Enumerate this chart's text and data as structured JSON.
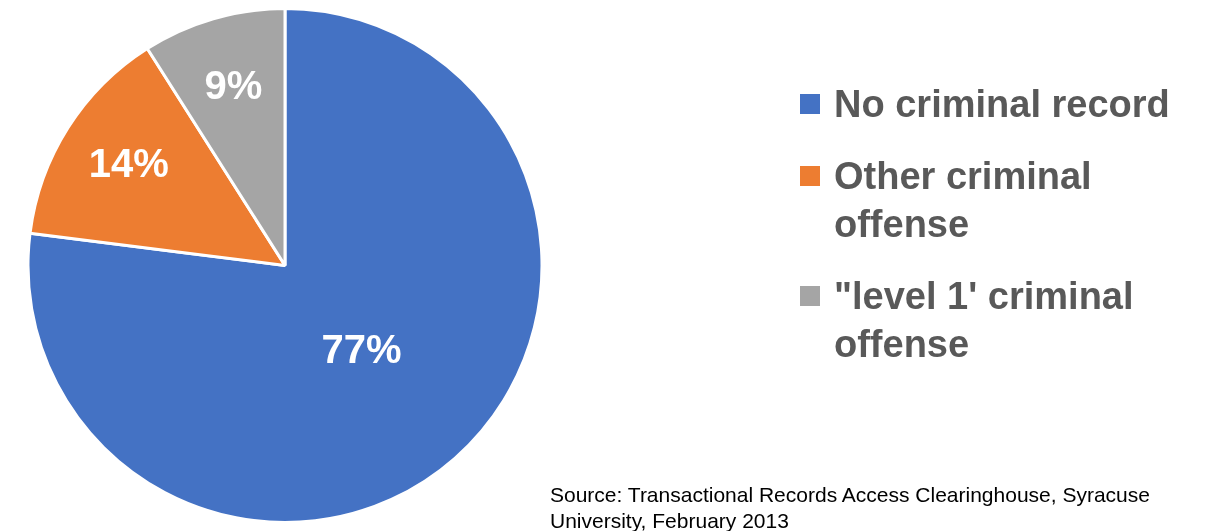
{
  "chart_data": {
    "type": "pie",
    "categories": [
      "No criminal record",
      "Other criminal offense",
      "\"level 1' criminal offense"
    ],
    "values": [
      77,
      14,
      9
    ],
    "colors": [
      "#4472c4",
      "#ed7d31",
      "#a5a5a5"
    ],
    "value_labels": [
      "77%",
      "14%",
      "9%"
    ],
    "legend": "right",
    "annotations": [
      "Source: Transactional Records Access Clearinghouse, Syracuse University, February 2013"
    ]
  }
}
